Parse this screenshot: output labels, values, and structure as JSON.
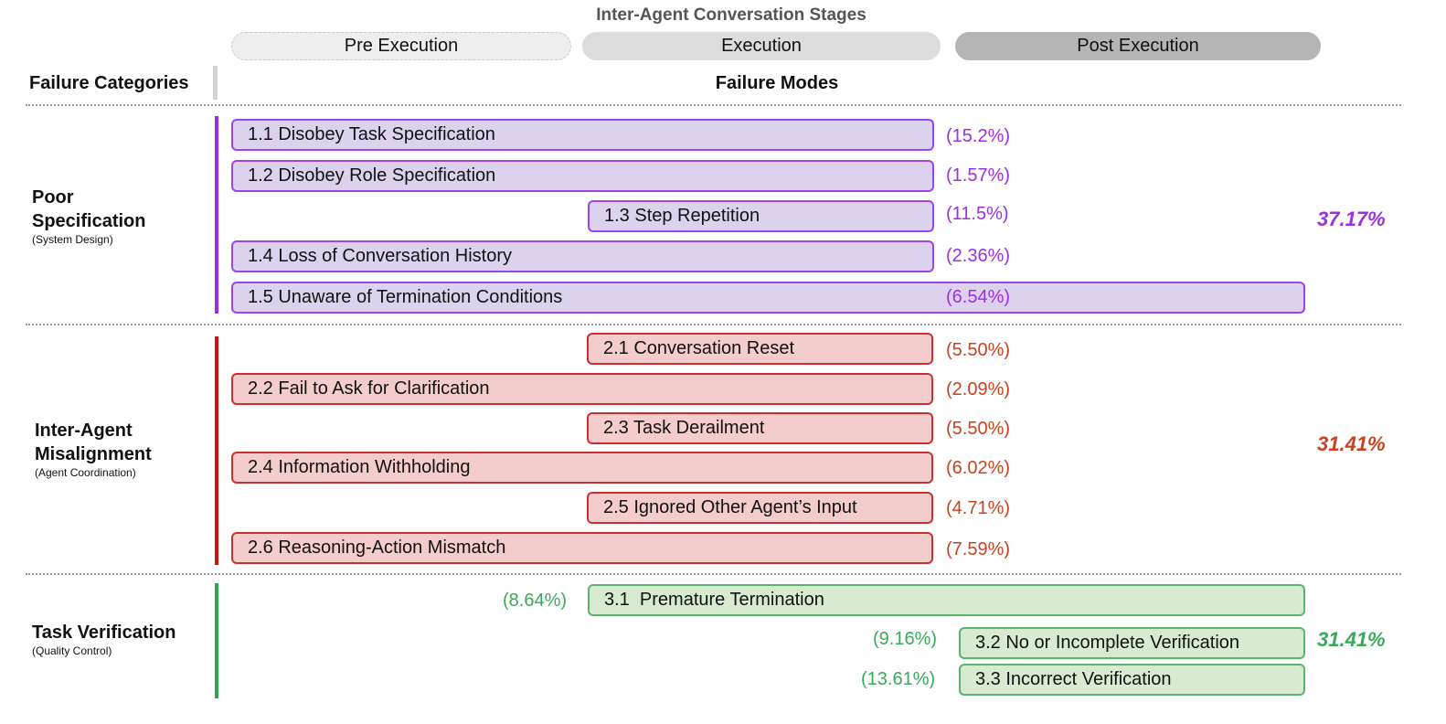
{
  "header": {
    "stages_title": "Inter-Agent Conversation Stages",
    "stages": [
      "Pre Execution",
      "Execution",
      "Post Execution"
    ],
    "categories_label": "Failure Categories",
    "modes_label": "Failure Modes"
  },
  "categories": [
    {
      "title_line1": "Poor",
      "title_line2": "Specification",
      "subtitle": "(System Design)",
      "total": "37.17%",
      "color": "#9b30e0",
      "modes": [
        {
          "label": "1.1 Disobey Task Specification",
          "pct": "(15.2%)"
        },
        {
          "label": "1.2 Disobey Role Specification",
          "pct": "(1.57%)"
        },
        {
          "label": "1.3 Step Repetition",
          "pct": "(11.5%)"
        },
        {
          "label": "1.4 Loss of Conversation History",
          "pct": "(2.36%)"
        },
        {
          "label": "1.5 Unaware of Termination Conditions",
          "pct": "(6.54%)"
        }
      ]
    },
    {
      "title_line1": "Inter-Agent",
      "title_line2": "Misalignment",
      "subtitle": "(Agent Coordination)",
      "total": "31.41%",
      "color": "#c9421f",
      "modes": [
        {
          "label": "2.1 Conversation Reset",
          "pct": "(5.50%)"
        },
        {
          "label": "2.2 Fail to Ask for Clarification",
          "pct": "(2.09%)"
        },
        {
          "label": "2.3 Task Derailment",
          "pct": "(5.50%)"
        },
        {
          "label": "2.4 Information Withholding",
          "pct": "(6.02%)"
        },
        {
          "label": "2.5 Ignored Other Agent’s Input",
          "pct": "(4.71%)"
        },
        {
          "label": "2.6 Reasoning-Action Mismatch",
          "pct": "(7.59%)"
        }
      ]
    },
    {
      "title_line1": "Task Verification",
      "subtitle": "(Quality Control)",
      "total": "31.41%",
      "color": "#3ba95a",
      "modes": [
        {
          "label": "3.1  Premature Termination",
          "pct": "(8.64%)"
        },
        {
          "label": "3.2 No or Incomplete Verification",
          "pct": "(9.16%)"
        },
        {
          "label": "3.3 Incorrect Verification",
          "pct": "(13.61%)"
        }
      ]
    }
  ]
}
